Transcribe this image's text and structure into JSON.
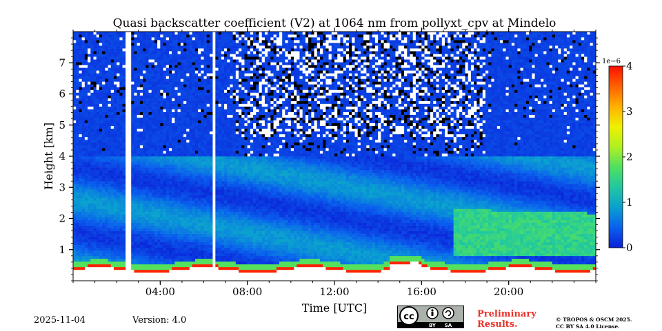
{
  "chart_data": {
    "type": "heatmap",
    "title": "Quasi backscatter coefficient (V2) at 1064 nm from pollyxt_cpv at Mindelo",
    "xlabel": "Time [UTC]",
    "ylabel": "Height [km]",
    "x_range_hours": [
      0,
      24
    ],
    "ylim_km": [
      0,
      8
    ],
    "x_ticks": [
      {
        "hour": 4,
        "label": "04:00"
      },
      {
        "hour": 8,
        "label": "08:00"
      },
      {
        "hour": 12,
        "label": "12:00"
      },
      {
        "hour": 16,
        "label": "16:00"
      },
      {
        "hour": 20,
        "label": "20:00"
      }
    ],
    "y_ticks": [
      {
        "km": 1,
        "label": "1"
      },
      {
        "km": 2,
        "label": "2"
      },
      {
        "km": 3,
        "label": "3"
      },
      {
        "km": 4,
        "label": "4"
      },
      {
        "km": 5,
        "label": "5"
      },
      {
        "km": 6,
        "label": "6"
      },
      {
        "km": 7,
        "label": "7"
      }
    ],
    "colorbar": {
      "range": [
        0,
        4
      ],
      "scale_label": "1e−6",
      "ticks": [
        {
          "value": 0,
          "label": "0"
        },
        {
          "value": 1,
          "label": "1"
        },
        {
          "value": 2,
          "label": "2"
        },
        {
          "value": 3,
          "label": "3"
        },
        {
          "value": 4,
          "label": "4"
        }
      ],
      "colors": [
        "#0a20d8",
        "#0a60ee",
        "#0aa0d0",
        "#20c8a0",
        "#50e060",
        "#b0f020",
        "#f0f000",
        "#ffb000",
        "#ff6000",
        "#ff1000"
      ]
    },
    "data_gaps_hours": [
      2.55,
      6.5
    ],
    "background_value": 0.15,
    "aerosol_layer_top_km": 4.0,
    "noise_region_hours": [
      7.5,
      19.0
    ],
    "surface_layer_value": 1.8,
    "strong_aerosol_region": {
      "hours": [
        17.5,
        24
      ],
      "km": [
        0.8,
        2.3
      ],
      "value": 1.7
    }
  },
  "footer": {
    "date": "2025-11-04",
    "version": "Version: 4.0",
    "license_badge": {
      "cc": "cc",
      "by": "BY",
      "sa": "SA"
    },
    "preliminary_line1": "Preliminary",
    "preliminary_line2": "Results.",
    "copyright_line1": "© TROPOS & OSCM 2025.",
    "copyright_line2": "CC BY SA 4.0 License."
  }
}
